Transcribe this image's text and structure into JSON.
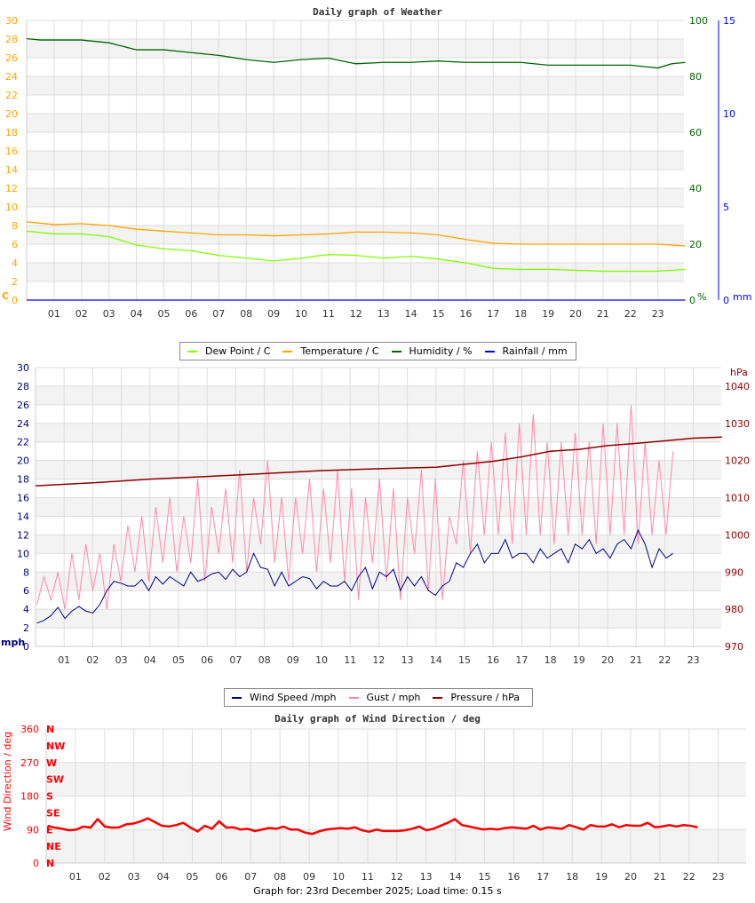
{
  "chart_data": [
    {
      "type": "line",
      "title": "Daily graph of Weather",
      "x_label_hours": [
        "01",
        "02",
        "03",
        "04",
        "05",
        "06",
        "07",
        "08",
        "09",
        "10",
        "11",
        "12",
        "13",
        "14",
        "15",
        "16",
        "17",
        "18",
        "19",
        "20",
        "21",
        "22",
        "23"
      ],
      "y_left": {
        "unit": "C",
        "ticks": [
          0,
          2,
          4,
          6,
          8,
          10,
          12,
          14,
          16,
          18,
          20,
          22,
          24,
          26,
          28,
          30
        ],
        "range": [
          0,
          30
        ],
        "color": "#ffa500"
      },
      "y_right1": {
        "unit": "%",
        "ticks": [
          0,
          20,
          40,
          60,
          80,
          100
        ],
        "range": [
          0,
          100
        ],
        "color": "#006400"
      },
      "y_right2": {
        "unit": "mm",
        "ticks": [
          0,
          5,
          10,
          15
        ],
        "range": [
          0,
          15
        ],
        "color": "#0000ff"
      },
      "grid": true,
      "legend_position": "bottom",
      "series": [
        {
          "name": "Dew Point / C",
          "color": "#7fff00",
          "axis": "left",
          "x": [
            0,
            1,
            2,
            3,
            4,
            5,
            6,
            7,
            8,
            9,
            10,
            11,
            12,
            13,
            14,
            15,
            16,
            17,
            18,
            19,
            20,
            21,
            22,
            23,
            24
          ],
          "values": [
            7.4,
            7.1,
            7.1,
            6.8,
            5.9,
            5.5,
            5.3,
            4.8,
            4.5,
            4.2,
            4.5,
            4.9,
            4.8,
            4.5,
            4.7,
            4.4,
            4.0,
            3.4,
            3.3,
            3.3,
            3.2,
            3.1,
            3.1,
            3.1,
            3.3
          ]
        },
        {
          "name": "Temperature / C",
          "color": "#ffa500",
          "axis": "left",
          "x": [
            0,
            1,
            2,
            3,
            4,
            5,
            6,
            7,
            8,
            9,
            10,
            11,
            12,
            13,
            14,
            15,
            16,
            17,
            18,
            19,
            20,
            21,
            22,
            23,
            24
          ],
          "values": [
            8.4,
            8.1,
            8.2,
            8.0,
            7.6,
            7.4,
            7.2,
            7.0,
            7.0,
            6.9,
            7.0,
            7.1,
            7.3,
            7.3,
            7.2,
            7.0,
            6.5,
            6.1,
            6.0,
            6.0,
            6.0,
            6.0,
            6.0,
            6.0,
            5.8
          ]
        },
        {
          "name": "Humidity / %",
          "color": "#006400",
          "axis": "right1",
          "x": [
            0,
            0.5,
            1,
            2,
            3,
            3.4,
            4,
            5,
            6,
            7,
            8,
            9,
            10,
            11,
            12,
            13,
            14,
            15,
            16,
            17,
            18,
            19,
            20,
            21,
            22,
            22.5,
            23,
            23.5,
            24
          ],
          "values": [
            93.5,
            93,
            93,
            93,
            92,
            91,
            89.5,
            89.5,
            88.5,
            87.5,
            86,
            85,
            86,
            86.5,
            84.5,
            85,
            85,
            85.5,
            85,
            85,
            85,
            84,
            84,
            84,
            84,
            83.5,
            83,
            84.5,
            85
          ]
        },
        {
          "name": "Rainfall / mm",
          "color": "#0000ff",
          "axis": "right2",
          "x": [
            0,
            24
          ],
          "values": [
            0,
            0
          ]
        }
      ]
    },
    {
      "type": "line",
      "x_label_hours": [
        "01",
        "02",
        "03",
        "04",
        "05",
        "06",
        "07",
        "08",
        "09",
        "10",
        "11",
        "12",
        "13",
        "14",
        "15",
        "16",
        "17",
        "18",
        "19",
        "20",
        "21",
        "22",
        "23"
      ],
      "y_left": {
        "unit": "mph",
        "ticks": [
          0,
          2,
          4,
          6,
          8,
          10,
          12,
          14,
          16,
          18,
          20,
          22,
          24,
          26,
          28,
          30
        ],
        "range": [
          0,
          30
        ],
        "color": "#000080"
      },
      "y_right": {
        "unit": "hPa",
        "ticks": [
          970,
          980,
          990,
          1000,
          1010,
          1020,
          1030,
          1040
        ],
        "range": [
          970,
          1040
        ],
        "color": "#8b0000"
      },
      "grid": true,
      "legend_position": "bottom",
      "series": [
        {
          "name": "Wind Speed /mph",
          "color": "#000080",
          "axis": "left",
          "values_every_half_hour": [
            2.5,
            2.8,
            3.3,
            4.2,
            3.0,
            3.8,
            4.3,
            3.8,
            3.6,
            4.5,
            6.0,
            7.0,
            6.8,
            6.5,
            6.5,
            7.2,
            6.0,
            7.5,
            6.7,
            7.5,
            7.0,
            6.5,
            8.0,
            7.0,
            7.3,
            7.8,
            8.0,
            7.2,
            8.3,
            7.5,
            8.0,
            10.0,
            8.5,
            8.3,
            6.5,
            8.0,
            6.5,
            7.0,
            7.5,
            7.3,
            6.2,
            7.0,
            6.5,
            6.5,
            7.0,
            6.0,
            7.5,
            8.5,
            6.2,
            8.0,
            7.5,
            8.3,
            6.0,
            7.5,
            6.5,
            7.5,
            6.0,
            5.5,
            6.5,
            7.0,
            9.0,
            8.5,
            10.0,
            11.0,
            9.0,
            10.0,
            10.0,
            11.5,
            9.5,
            10.0,
            10.0,
            9.0,
            10.5,
            9.5,
            10.0,
            10.5,
            9.0,
            11.0,
            10.5,
            11.5,
            10.0,
            10.5,
            9.5,
            11.0,
            11.5,
            10.5,
            12.5,
            11.0,
            8.5,
            10.5,
            9.5,
            10.0
          ]
        },
        {
          "name": "Gust / mph",
          "color": "#ff88aa",
          "axis": "left",
          "values_every_half_hour": [
            4.5,
            7.5,
            5,
            8,
            4,
            10,
            5,
            11,
            6,
            10,
            4,
            11,
            7,
            13,
            8,
            14,
            7,
            15,
            9,
            16,
            8,
            14,
            9,
            18,
            7,
            15,
            10,
            17,
            9,
            19,
            8,
            16,
            11,
            20,
            9,
            16,
            7,
            16,
            10,
            18,
            8,
            17,
            9,
            19,
            7,
            17,
            5,
            16,
            9,
            18,
            7,
            17,
            5,
            16,
            10,
            19,
            6,
            18,
            5,
            14,
            11,
            20,
            10,
            21,
            12,
            22,
            12,
            23,
            11,
            24,
            12,
            25,
            12,
            22,
            11,
            22,
            12,
            23,
            12,
            22,
            11,
            24,
            12,
            24,
            12,
            26,
            11,
            22,
            12,
            20,
            12,
            21
          ]
        },
        {
          "name": "Pressure / hPa",
          "color": "#8b0000",
          "axis": "right",
          "x": [
            0,
            2,
            4,
            6,
            8,
            10,
            12,
            14,
            15,
            16,
            17,
            18,
            19,
            20,
            21,
            22,
            23,
            24
          ],
          "values": [
            1013.2,
            1014,
            1015,
            1015.7,
            1016.5,
            1017.3,
            1017.8,
            1018.2,
            1019,
            1019.8,
            1021,
            1022.5,
            1023,
            1024,
            1024.6,
            1025.3,
            1026,
            1026.3
          ]
        }
      ]
    },
    {
      "type": "scatter",
      "title": "Daily graph of Wind Direction / deg",
      "x_label_hours": [
        "01",
        "02",
        "03",
        "04",
        "05",
        "06",
        "07",
        "08",
        "09",
        "10",
        "11",
        "12",
        "13",
        "14",
        "15",
        "16",
        "17",
        "18",
        "19",
        "20",
        "21",
        "22",
        "23"
      ],
      "ylabel": "Wind Direction / deg",
      "y_left": {
        "ticks": [
          0,
          90,
          180,
          270,
          360
        ],
        "range": [
          0,
          360
        ],
        "color": "#ff0000"
      },
      "compass_labels": [
        "N",
        "NE",
        "E",
        "SE",
        "S",
        "SW",
        "W",
        "NW",
        "N"
      ],
      "grid": true,
      "series": [
        {
          "color": "#ff0000",
          "values_every_half_hour": [
            100,
            95,
            92,
            88,
            90,
            98,
            95,
            118,
            98,
            95,
            96,
            104,
            106,
            112,
            120,
            110,
            100,
            98,
            102,
            108,
            95,
            85,
            100,
            92,
            112,
            95,
            96,
            90,
            92,
            86,
            90,
            94,
            92,
            98,
            90,
            90,
            82,
            78,
            85,
            90,
            92,
            94,
            92,
            96,
            88,
            84,
            90,
            86,
            86,
            86,
            88,
            92,
            98,
            88,
            92,
            100,
            108,
            118,
            102,
            98,
            94,
            90,
            92,
            90,
            94,
            96,
            94,
            92,
            100,
            90,
            96,
            94,
            92,
            102,
            96,
            90,
            102,
            98,
            98,
            104,
            96,
            102,
            100,
            100,
            108,
            96,
            98,
            102,
            98,
            102,
            100,
            96
          ]
        }
      ]
    }
  ],
  "legend1": [
    {
      "label": "Dew Point / C",
      "color": "#7fff00"
    },
    {
      "label": "Temperature / C",
      "color": "#ffa500"
    },
    {
      "label": "Humidity / %",
      "color": "#006400"
    },
    {
      "label": "Rainfall / mm",
      "color": "#0000ff"
    }
  ],
  "legend2": [
    {
      "label": "Wind Speed /mph",
      "color": "#000080"
    },
    {
      "label": "Gust / mph",
      "color": "#ff88aa"
    },
    {
      "label": "Pressure / hPa",
      "color": "#8b0000"
    }
  ],
  "footer": "Graph for: 23rd December 2025; Load time: 0.15 s"
}
